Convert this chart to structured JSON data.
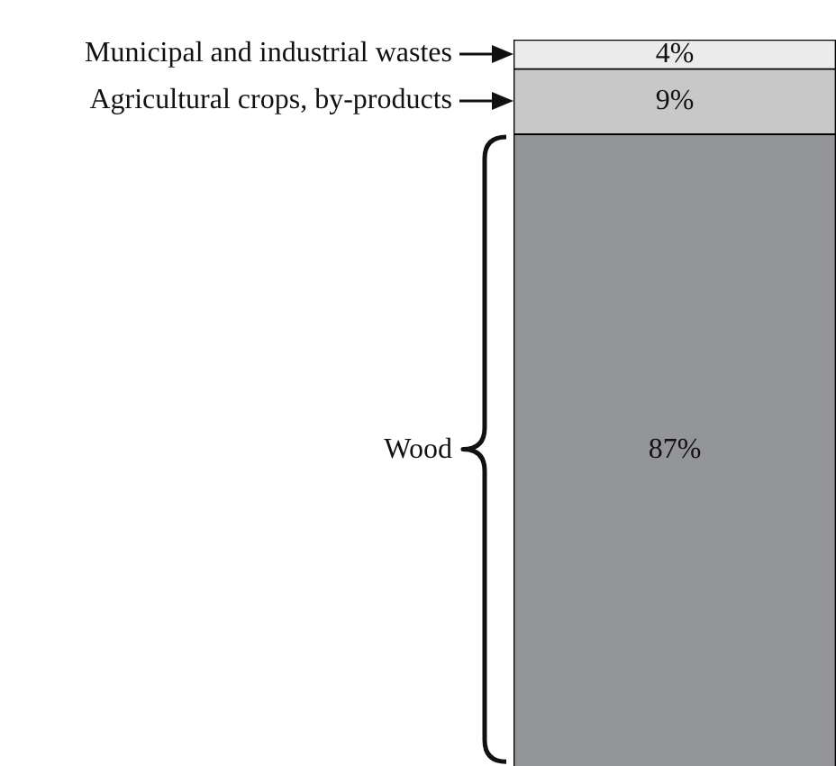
{
  "chart_data": {
    "type": "bar",
    "stacked": true,
    "categories": [
      null
    ],
    "series": [
      {
        "name": "Wood",
        "color": "#939598",
        "values": [
          87
        ],
        "value_labels": [
          "87%"
        ]
      },
      {
        "name": "Agricultural crops, by-products",
        "color": "#c8c8c8",
        "values": [
          9
        ],
        "value_labels": [
          "9%"
        ]
      },
      {
        "name": "Municipal and industrial wastes",
        "color": "#ebebeb",
        "values": [
          4
        ],
        "value_labels": [
          "4%"
        ]
      }
    ],
    "ylim": [
      0,
      100
    ]
  }
}
